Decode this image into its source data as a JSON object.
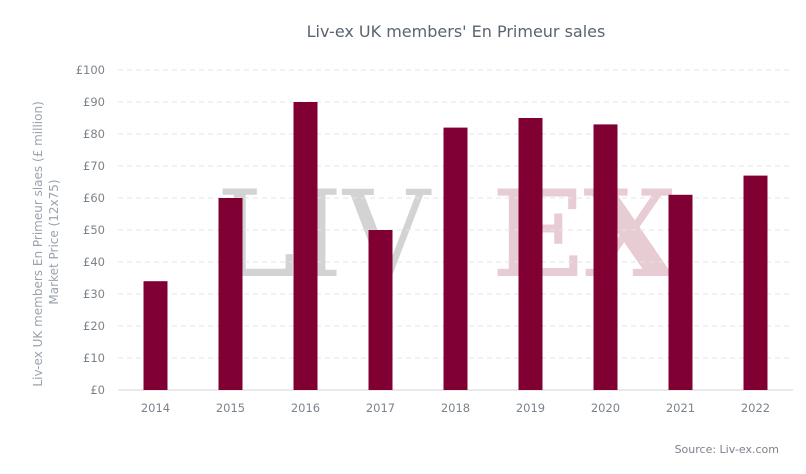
{
  "chart_data": {
    "type": "bar",
    "title": "Liv-ex UK members' En Primeur sales",
    "ylabel": "Liv-ex UK members En Primeur slaes (£ million) Market Price (12x75)",
    "xlabel": "",
    "categories": [
      "2014",
      "2015",
      "2016",
      "2017",
      "2018",
      "2019",
      "2020",
      "2021",
      "2022"
    ],
    "values": [
      34,
      60,
      90,
      50,
      82,
      85,
      83,
      61,
      67
    ],
    "ylim": [
      0,
      100
    ],
    "yticks": [
      "£0",
      "£10",
      "£20",
      "£30",
      "£40",
      "£50",
      "£60",
      "£70",
      "£80",
      "£90",
      "£100"
    ],
    "bar_color": "#800033",
    "grid": true,
    "source": "Source: Liv-ex.com"
  },
  "watermark": {
    "part1": "LIV",
    "part2": "EX"
  }
}
